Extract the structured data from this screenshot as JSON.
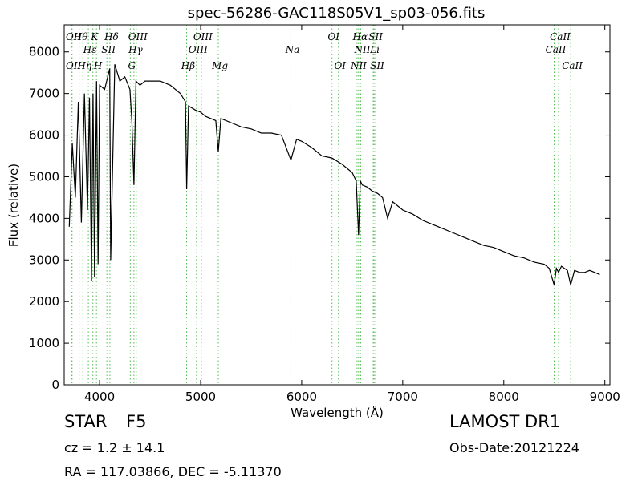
{
  "chart_data": {
    "type": "line",
    "title": "spec-56286-GAC118S05V1_sp03-056.fits",
    "xlabel": "Wavelength (Å)",
    "ylabel": "Flux (relative)",
    "xlim": [
      3650,
      9050
    ],
    "ylim": [
      0,
      8650
    ],
    "xticks": [
      4000,
      5000,
      6000,
      7000,
      8000,
      9000
    ],
    "yticks": [
      0,
      1000,
      2000,
      3000,
      4000,
      5000,
      6000,
      7000,
      8000
    ],
    "grid": false,
    "line_color": "#000000",
    "marker_color": "#55bb55",
    "series": [
      {
        "x": [
          3700,
          3730,
          3760,
          3790,
          3820,
          3850,
          3880,
          3900,
          3920,
          3935,
          3950,
          3970,
          3985,
          4000,
          4050,
          4100,
          4110,
          4150,
          4200,
          4250,
          4300,
          4320,
          4340,
          4360,
          4400,
          4450,
          4500,
          4600,
          4700,
          4800,
          4850,
          4862,
          4880,
          4950,
          5000,
          5050,
          5100,
          5150,
          5175,
          5200,
          5300,
          5400,
          5500,
          5600,
          5700,
          5800,
          5893,
          5950,
          6000,
          6100,
          6200,
          6300,
          6400,
          6500,
          6540,
          6563,
          6580,
          6600,
          6650,
          6700,
          6750,
          6800,
          6850,
          6900,
          7000,
          7100,
          7200,
          7300,
          7400,
          7500,
          7600,
          7700,
          7800,
          7900,
          8000,
          8100,
          8200,
          8300,
          8400,
          8450,
          8498,
          8520,
          8542,
          8570,
          8600,
          8630,
          8662,
          8700,
          8750,
          8800,
          8850,
          8900,
          8950
        ],
        "y": [
          3800,
          5800,
          4500,
          6800,
          3900,
          7000,
          4200,
          6900,
          2500,
          7000,
          2600,
          7300,
          2900,
          7200,
          7100,
          7600,
          3000,
          7700,
          7300,
          7400,
          7100,
          6300,
          4800,
          7300,
          7200,
          7300,
          7300,
          7300,
          7200,
          7000,
          6800,
          4700,
          6700,
          6600,
          6550,
          6450,
          6400,
          6350,
          5600,
          6400,
          6300,
          6200,
          6150,
          6050,
          6050,
          6000,
          5400,
          5900,
          5850,
          5700,
          5500,
          5450,
          5300,
          5100,
          4900,
          3600,
          4900,
          4800,
          4750,
          4650,
          4600,
          4500,
          4000,
          4400,
          4200,
          4100,
          3950,
          3850,
          3750,
          3650,
          3550,
          3450,
          3350,
          3300,
          3200,
          3100,
          3050,
          2950,
          2900,
          2800,
          2400,
          2800,
          2700,
          2850,
          2800,
          2750,
          2400,
          2750,
          2700,
          2700,
          2750,
          2700,
          2650
        ]
      }
    ],
    "lines": [
      {
        "name": "Hθ",
        "x": 3798,
        "row": "top"
      },
      {
        "name": "OII",
        "x": 3727,
        "row": "top"
      },
      {
        "name": "OII",
        "x": 3727,
        "row": "mid2"
      },
      {
        "name": "Hη",
        "x": 3835,
        "row": "mid2"
      },
      {
        "name": "Hε",
        "x": 3889,
        "row": "mid1"
      },
      {
        "name": "K",
        "x": 3934,
        "row": "top"
      },
      {
        "name": "SII",
        "x": 4072,
        "row": "mid1"
      },
      {
        "name": "H",
        "x": 3969,
        "row": "mid2"
      },
      {
        "name": "Hδ",
        "x": 4102,
        "row": "top"
      },
      {
        "name": "OIII",
        "x": 4363,
        "row": "top"
      },
      {
        "name": "Hγ",
        "x": 4340,
        "row": "mid1"
      },
      {
        "name": "G",
        "x": 4304,
        "row": "mid2"
      },
      {
        "name": "OIII",
        "x": 5007,
        "row": "top"
      },
      {
        "name": "OIII",
        "x": 4959,
        "row": "mid1"
      },
      {
        "name": "Hβ",
        "x": 4861,
        "row": "mid2"
      },
      {
        "name": "Mg",
        "x": 5175,
        "row": "mid2"
      },
      {
        "name": "Na",
        "x": 5893,
        "row": "mid1"
      },
      {
        "name": "OI",
        "x": 6300,
        "row": "top"
      },
      {
        "name": "OI",
        "x": 6364,
        "row": "mid2"
      },
      {
        "name": "Hα",
        "x": 6563,
        "row": "top"
      },
      {
        "name": "SII",
        "x": 6716,
        "row": "top"
      },
      {
        "name": "NII",
        "x": 6584,
        "row": "mid1"
      },
      {
        "name": "Li",
        "x": 6708,
        "row": "mid1"
      },
      {
        "name": "NII",
        "x": 6548,
        "row": "mid2"
      },
      {
        "name": "SII",
        "x": 6731,
        "row": "mid2"
      },
      {
        "name": "CaII",
        "x": 8542,
        "row": "top"
      },
      {
        "name": "CaII",
        "x": 8498,
        "row": "mid1"
      },
      {
        "name": "CaII",
        "x": 8662,
        "row": "mid2"
      }
    ]
  },
  "footer": {
    "object_class": "STAR",
    "subclass": "F5",
    "survey": "LAMOST DR1",
    "cz_text": "cz = 1.2 ± 14.1",
    "obs_date": "Obs-Date:20121224",
    "coords": "RA = 117.03866, DEC = -5.11370"
  }
}
